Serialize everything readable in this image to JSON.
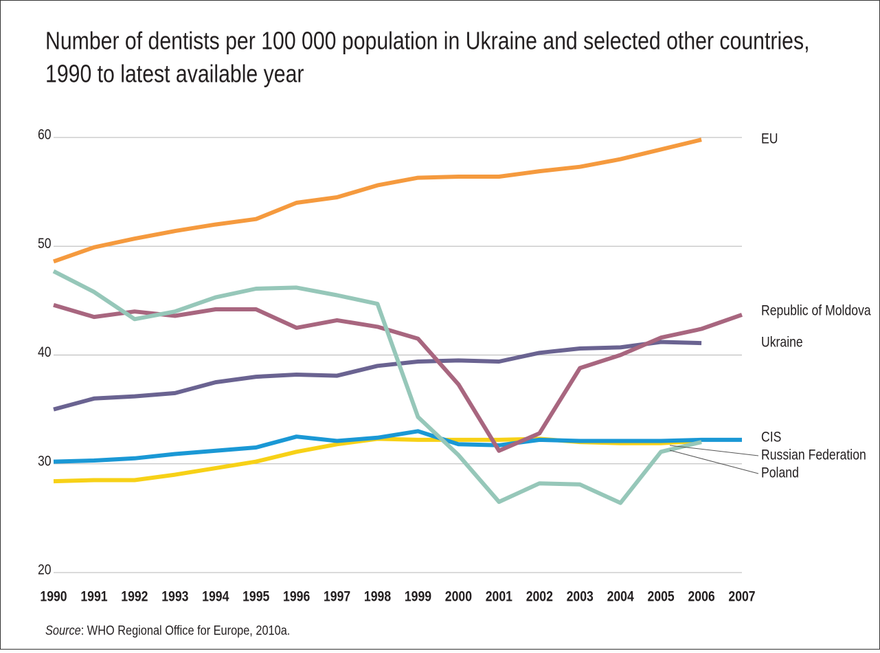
{
  "chart_data": {
    "type": "line",
    "title": "Number of dentists per 100 000 population in Ukraine and selected other countries, 1990 to latest available year",
    "source_label": "Source",
    "source": ": WHO Regional Office for Europe, 2010a.",
    "categories": [
      "1990",
      "1991",
      "1992",
      "1993",
      "1994",
      "1995",
      "1996",
      "1997",
      "1998",
      "1999",
      "2000",
      "2001",
      "2002",
      "2003",
      "2004",
      "2005",
      "2006",
      "2007"
    ],
    "ylim": [
      20,
      60
    ],
    "yticks": [
      20,
      30,
      40,
      50,
      60
    ],
    "grid": true,
    "series": [
      {
        "name": "EU",
        "color": "#f59a3e",
        "values": [
          48.6,
          49.9,
          50.7,
          51.4,
          52.0,
          52.5,
          54.0,
          54.5,
          55.6,
          56.3,
          56.4,
          56.4,
          56.9,
          57.3,
          58.0,
          58.9,
          59.8,
          null
        ]
      },
      {
        "name": "Republic of Moldova",
        "color": "#a8667f",
        "values": [
          44.6,
          43.5,
          44.0,
          43.6,
          44.2,
          44.2,
          42.5,
          43.2,
          42.6,
          41.5,
          37.3,
          31.2,
          32.8,
          38.8,
          40.0,
          41.6,
          42.4,
          43.7
        ]
      },
      {
        "name": "Ukraine",
        "color": "#6a6391",
        "values": [
          35.0,
          36.0,
          36.2,
          36.5,
          37.5,
          38.0,
          38.2,
          38.1,
          39.0,
          39.4,
          39.5,
          39.4,
          40.2,
          40.6,
          40.7,
          41.2,
          41.1,
          null
        ]
      },
      {
        "name": "CIS",
        "color": "#1a98d5",
        "values": [
          30.2,
          30.3,
          30.5,
          30.9,
          31.2,
          31.5,
          32.5,
          32.1,
          32.4,
          33.0,
          31.8,
          31.7,
          32.2,
          32.1,
          32.1,
          32.1,
          32.2,
          32.2
        ]
      },
      {
        "name": "Russian Federation",
        "color": "#96c7b9",
        "values": [
          47.7,
          45.8,
          43.3,
          44.0,
          45.3,
          46.1,
          46.2,
          45.5,
          44.7,
          34.3,
          30.8,
          26.5,
          28.2,
          28.1,
          26.4,
          31.1,
          32.0,
          null
        ]
      },
      {
        "name": "Poland",
        "color": "#f7d117",
        "values": [
          28.4,
          28.5,
          28.5,
          29.0,
          29.6,
          30.2,
          31.1,
          31.8,
          32.3,
          32.2,
          32.2,
          32.2,
          32.3,
          32.0,
          31.9,
          31.9,
          32.1,
          null
        ]
      }
    ]
  }
}
